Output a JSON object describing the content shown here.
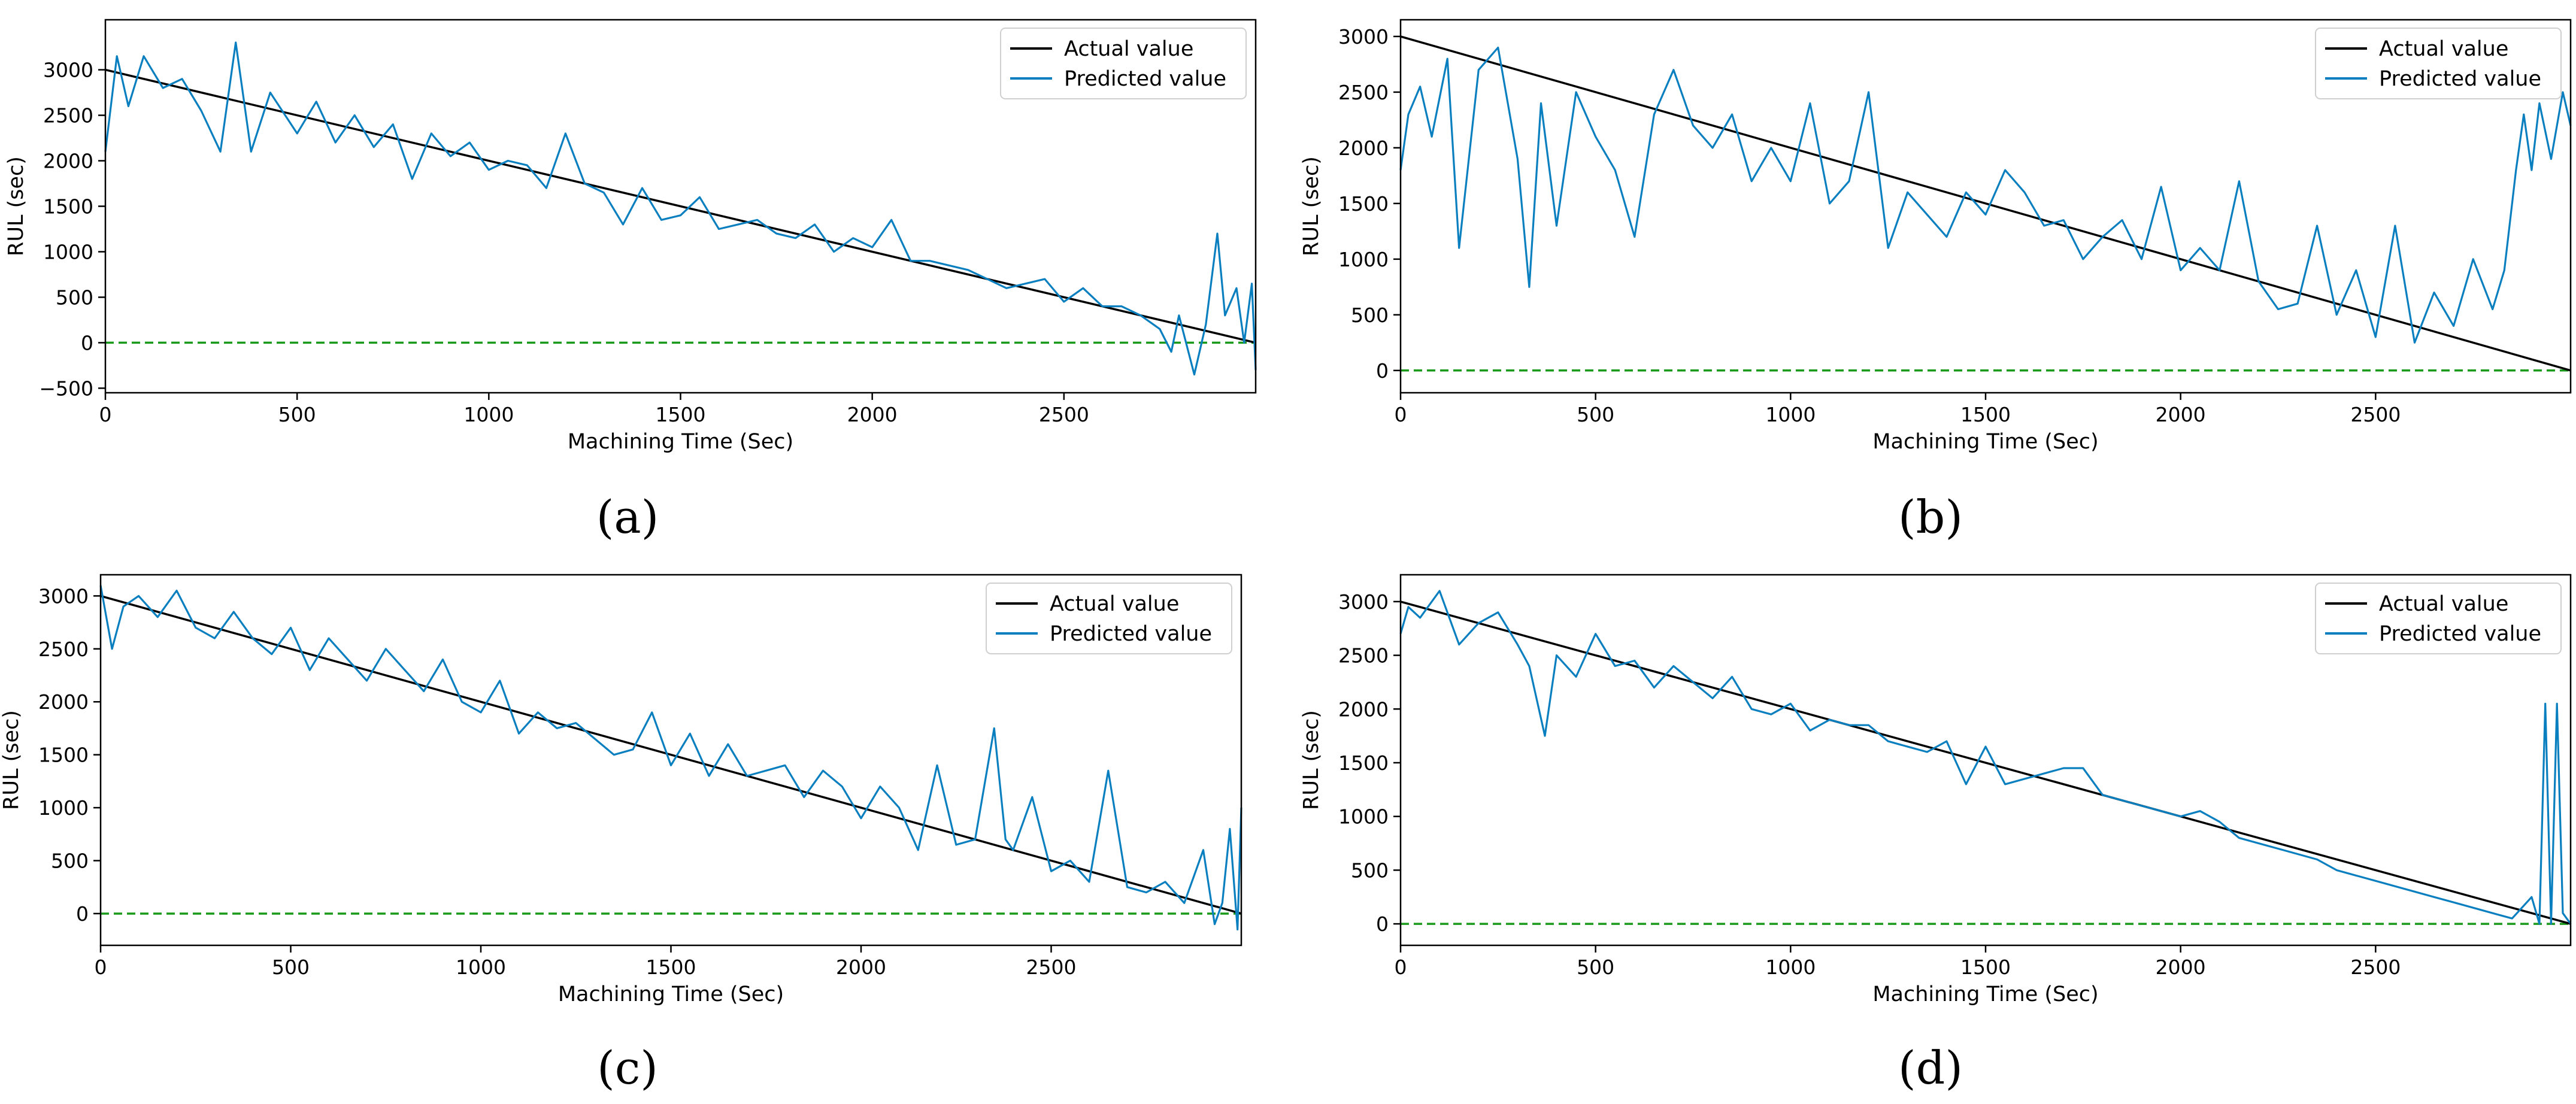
{
  "colors": {
    "actual": "#000000",
    "predicted": "#0a7fbf",
    "zero_line": "#1a9a1a",
    "frame": "#000000"
  },
  "chart_data": [
    {
      "type": "line",
      "caption": "(a)",
      "xlabel": "Machining Time (Sec)",
      "ylabel": "RUL (sec)",
      "xlim": [
        0,
        3000
      ],
      "ylim": [
        -550,
        3550
      ],
      "xticks": [
        "0",
        "500",
        "1000",
        "1500",
        "2000",
        "2500"
      ],
      "yticks": [
        "−500",
        "0",
        "500",
        "1000",
        "1500",
        "2000",
        "2500",
        "3000"
      ],
      "legend_position": "top-right",
      "series": [
        {
          "name": "Actual value",
          "x": [
            0,
            3000
          ],
          "y": [
            3000,
            0
          ]
        },
        {
          "name": "Predicted value",
          "x": [
            0,
            30,
            60,
            100,
            150,
            200,
            250,
            300,
            340,
            380,
            430,
            500,
            550,
            600,
            650,
            700,
            750,
            800,
            850,
            900,
            950,
            1000,
            1050,
            1100,
            1150,
            1200,
            1250,
            1300,
            1350,
            1400,
            1450,
            1500,
            1550,
            1600,
            1650,
            1700,
            1750,
            1800,
            1850,
            1900,
            1950,
            2000,
            2050,
            2100,
            2150,
            2200,
            2250,
            2300,
            2350,
            2400,
            2450,
            2500,
            2550,
            2600,
            2650,
            2700,
            2750,
            2780,
            2800,
            2840,
            2870,
            2900,
            2920,
            2950,
            2970,
            2990,
            3000
          ],
          "y": [
            2100,
            3150,
            2600,
            3150,
            2800,
            2900,
            2550,
            2100,
            3300,
            2100,
            2750,
            2300,
            2650,
            2200,
            2500,
            2150,
            2400,
            1800,
            2300,
            2050,
            2200,
            1900,
            2000,
            1950,
            1700,
            2300,
            1750,
            1650,
            1300,
            1700,
            1350,
            1400,
            1600,
            1250,
            1300,
            1350,
            1200,
            1150,
            1300,
            1000,
            1150,
            1050,
            1350,
            900,
            900,
            850,
            800,
            700,
            600,
            650,
            700,
            450,
            600,
            400,
            400,
            300,
            150,
            -100,
            300,
            -350,
            200,
            1200,
            300,
            600,
            0,
            650,
            -300
          ]
        }
      ]
    },
    {
      "type": "line",
      "caption": "(b)",
      "xlabel": "Machining Time (Sec)",
      "ylabel": "RUL (sec)",
      "xlim": [
        0,
        3000
      ],
      "ylim": [
        -200,
        3150
      ],
      "xticks": [
        "0",
        "500",
        "1000",
        "1500",
        "2000",
        "2500"
      ],
      "yticks": [
        "0",
        "500",
        "1000",
        "1500",
        "2000",
        "2500",
        "3000"
      ],
      "legend_position": "top-right",
      "series": [
        {
          "name": "Actual value",
          "x": [
            0,
            3000
          ],
          "y": [
            3000,
            0
          ]
        },
        {
          "name": "Predicted value",
          "x": [
            0,
            20,
            50,
            80,
            120,
            150,
            200,
            250,
            300,
            330,
            360,
            400,
            450,
            500,
            550,
            600,
            650,
            700,
            750,
            800,
            850,
            900,
            950,
            1000,
            1050,
            1100,
            1150,
            1200,
            1250,
            1300,
            1350,
            1400,
            1450,
            1500,
            1550,
            1600,
            1650,
            1700,
            1750,
            1800,
            1850,
            1900,
            1950,
            2000,
            2050,
            2100,
            2150,
            2200,
            2250,
            2300,
            2350,
            2400,
            2450,
            2500,
            2550,
            2600,
            2650,
            2700,
            2750,
            2800,
            2830,
            2860,
            2880,
            2900,
            2920,
            2950,
            2980,
            3000
          ],
          "y": [
            1800,
            2300,
            2550,
            2100,
            2800,
            1100,
            2700,
            2900,
            1900,
            750,
            2400,
            1300,
            2500,
            2100,
            1800,
            1200,
            2300,
            2700,
            2200,
            2000,
            2300,
            1700,
            2000,
            1700,
            2400,
            1500,
            1700,
            2500,
            1100,
            1600,
            1400,
            1200,
            1600,
            1400,
            1800,
            1600,
            1300,
            1350,
            1000,
            1200,
            1350,
            1000,
            1650,
            900,
            1100,
            900,
            1700,
            800,
            550,
            600,
            1300,
            500,
            900,
            300,
            1300,
            250,
            700,
            400,
            1000,
            550,
            900,
            1800,
            2300,
            1800,
            2400,
            1900,
            2500,
            2200
          ]
        }
      ]
    },
    {
      "type": "line",
      "caption": "(c)",
      "xlabel": "Machining Time (Sec)",
      "ylabel": "RUL (sec)",
      "xlim": [
        0,
        3000
      ],
      "ylim": [
        -300,
        3200
      ],
      "xticks": [
        "0",
        "500",
        "1000",
        "1500",
        "2000",
        "2500"
      ],
      "yticks": [
        "0",
        "500",
        "1000",
        "1500",
        "2000",
        "2500",
        "3000"
      ],
      "legend_position": "top-right",
      "series": [
        {
          "name": "Actual value",
          "x": [
            0,
            3000
          ],
          "y": [
            3000,
            0
          ]
        },
        {
          "name": "Predicted value",
          "x": [
            0,
            30,
            60,
            100,
            150,
            200,
            250,
            300,
            350,
            400,
            450,
            500,
            550,
            600,
            650,
            700,
            750,
            800,
            850,
            900,
            950,
            1000,
            1050,
            1100,
            1150,
            1200,
            1250,
            1300,
            1350,
            1400,
            1450,
            1500,
            1550,
            1600,
            1650,
            1700,
            1750,
            1800,
            1850,
            1900,
            1950,
            2000,
            2050,
            2100,
            2150,
            2200,
            2250,
            2300,
            2350,
            2380,
            2400,
            2450,
            2500,
            2550,
            2600,
            2650,
            2700,
            2750,
            2800,
            2850,
            2900,
            2930,
            2950,
            2970,
            2990,
            3000
          ],
          "y": [
            3100,
            2500,
            2900,
            3000,
            2800,
            3050,
            2700,
            2600,
            2850,
            2600,
            2450,
            2700,
            2300,
            2600,
            2400,
            2200,
            2500,
            2300,
            2100,
            2400,
            2000,
            1900,
            2200,
            1700,
            1900,
            1750,
            1800,
            1650,
            1500,
            1550,
            1900,
            1400,
            1700,
            1300,
            1600,
            1300,
            1350,
            1400,
            1100,
            1350,
            1200,
            900,
            1200,
            1000,
            600,
            1400,
            650,
            700,
            1750,
            700,
            600,
            1100,
            400,
            500,
            300,
            1350,
            250,
            200,
            300,
            100,
            600,
            -100,
            100,
            800,
            -150,
            1000
          ]
        }
      ]
    },
    {
      "type": "line",
      "caption": "(d)",
      "xlabel": "Machining Time (Sec)",
      "ylabel": "RUL (sec)",
      "xlim": [
        0,
        3000
      ],
      "ylim": [
        -200,
        3250
      ],
      "xticks": [
        "0",
        "500",
        "1000",
        "1500",
        "2000",
        "2500"
      ],
      "yticks": [
        "0",
        "500",
        "1000",
        "1500",
        "2000",
        "2500",
        "3000"
      ],
      "legend_position": "top-right",
      "series": [
        {
          "name": "Actual value",
          "x": [
            0,
            3000
          ],
          "y": [
            3000,
            0
          ]
        },
        {
          "name": "Predicted value",
          "x": [
            0,
            20,
            50,
            100,
            150,
            200,
            250,
            300,
            330,
            370,
            400,
            450,
            500,
            550,
            600,
            650,
            700,
            750,
            800,
            850,
            900,
            950,
            1000,
            1050,
            1100,
            1150,
            1200,
            1250,
            1300,
            1350,
            1400,
            1450,
            1500,
            1550,
            1600,
            1650,
            1700,
            1750,
            1800,
            1850,
            1900,
            1950,
            2000,
            2050,
            2100,
            2150,
            2200,
            2250,
            2300,
            2350,
            2400,
            2450,
            2500,
            2550,
            2600,
            2650,
            2700,
            2750,
            2800,
            2850,
            2900,
            2920,
            2935,
            2950,
            2965,
            2980,
            3000
          ],
          "y": [
            2700,
            2950,
            2850,
            3100,
            2600,
            2800,
            2900,
            2600,
            2400,
            1750,
            2500,
            2300,
            2700,
            2400,
            2450,
            2200,
            2400,
            2250,
            2100,
            2300,
            2000,
            1950,
            2050,
            1800,
            1900,
            1850,
            1850,
            1700,
            1650,
            1600,
            1700,
            1300,
            1650,
            1300,
            1350,
            1400,
            1450,
            1450,
            1200,
            1150,
            1100,
            1050,
            1000,
            1050,
            950,
            800,
            750,
            700,
            650,
            600,
            500,
            450,
            400,
            350,
            300,
            250,
            200,
            150,
            100,
            50,
            250,
            0,
            2050,
            0,
            2050,
            100,
            0
          ]
        }
      ]
    }
  ]
}
